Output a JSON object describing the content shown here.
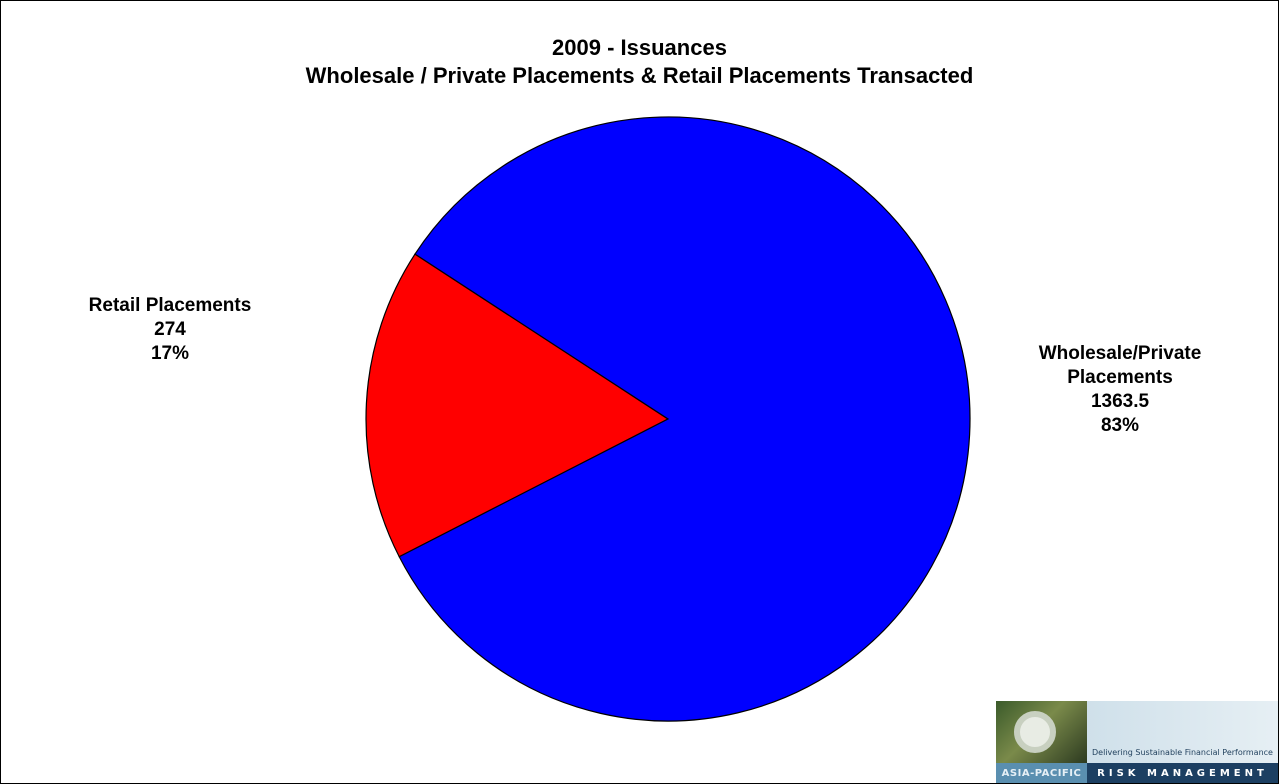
{
  "chart_data": {
    "type": "pie",
    "title": "2009 - Issuances",
    "subtitle": "Wholesale / Private Placements & Retail Placements Transacted",
    "slices": [
      {
        "name_lines": [
          "Retail Placements"
        ],
        "value": 274,
        "value_text": "274",
        "percent": 17,
        "percent_text": "17%",
        "color": "#ff0000"
      },
      {
        "name_lines": [
          "Wholesale/Private",
          "Placements"
        ],
        "value": 1363.5,
        "value_text": "1363.5",
        "percent": 83,
        "percent_text": "83%",
        "color": "#0000ff"
      }
    ],
    "start_angle_deg": 146.9,
    "direction": "counterclockwise"
  },
  "logo": {
    "tagline": "Delivering Sustainable Financial Performance",
    "region": "ASIA-PACIFIC",
    "name": "RISK MANAGEMENT"
  }
}
